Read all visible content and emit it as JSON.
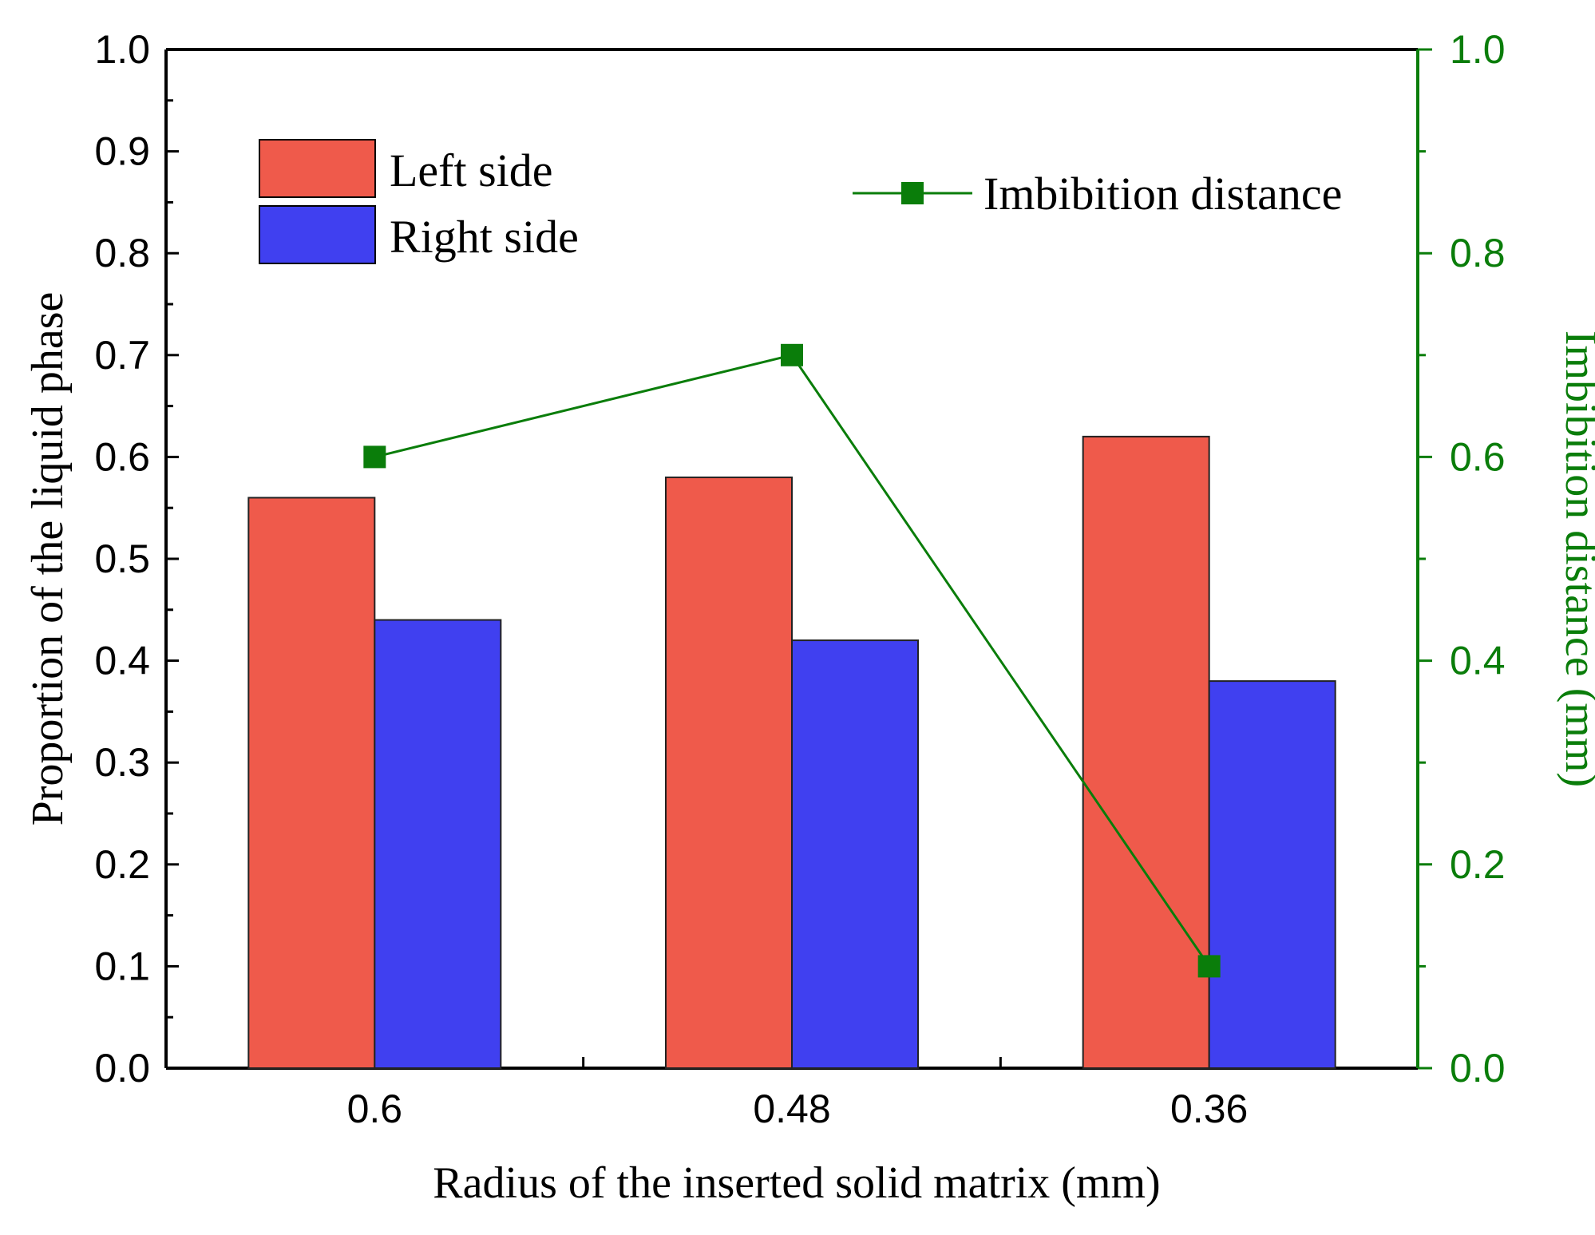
{
  "chart_data": {
    "type": "bar",
    "categories": [
      "0.6",
      "0.48",
      "0.36"
    ],
    "series": [
      {
        "name": "Left side",
        "axis": "left",
        "kind": "bar",
        "color": "#ef5a4b",
        "values": [
          0.56,
          0.58,
          0.62
        ]
      },
      {
        "name": "Right side",
        "axis": "left",
        "kind": "bar",
        "color": "#4040f0",
        "values": [
          0.44,
          0.42,
          0.38
        ]
      },
      {
        "name": "Imbibition distance",
        "axis": "right",
        "kind": "line",
        "color": "#0a7d0a",
        "values": [
          0.6,
          0.7,
          0.1
        ]
      }
    ],
    "xlabel": "Radius of the inserted solid matrix (mm)",
    "ylabel": "Proportion of the liquid phase",
    "y2label": "Imbibition distance (mm)",
    "ylim": [
      0.0,
      1.0
    ],
    "y2lim": [
      0.0,
      1.0
    ],
    "yticks": [
      "0.0",
      "0.1",
      "0.2",
      "0.3",
      "0.4",
      "0.5",
      "0.6",
      "0.7",
      "0.8",
      "0.9",
      "1.0"
    ],
    "y2ticks": [
      "0.0",
      "0.2",
      "0.4",
      "0.6",
      "0.8",
      "1.0"
    ],
    "legend": {
      "bars": "top-left",
      "line": "top-right"
    },
    "grid": false,
    "axis_color": "#000000",
    "right_axis_color": "#0a7d0a"
  }
}
